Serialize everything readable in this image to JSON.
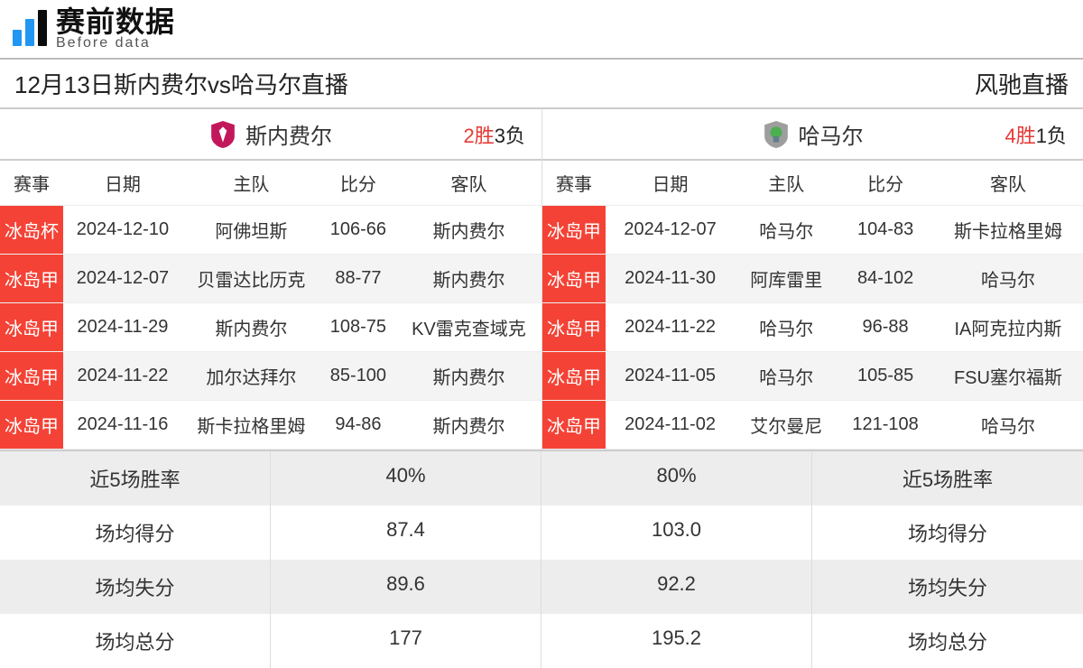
{
  "logo": {
    "cn": "赛前数据",
    "en": "Before data"
  },
  "page_title": "12月13日斯内费尔vs哈马尔直播",
  "site_name": "风驰直播",
  "columns": {
    "league": "赛事",
    "date": "日期",
    "home": "主队",
    "score": "比分",
    "away": "客队"
  },
  "left": {
    "team": "斯内费尔",
    "badge_color": "#c2185b",
    "record_win": "2胜",
    "record_loss": "3负",
    "rows": [
      {
        "league": "冰岛杯",
        "date": "2024-12-10",
        "home": "阿佛坦斯",
        "score": "106-66",
        "away": "斯内费尔"
      },
      {
        "league": "冰岛甲",
        "date": "2024-12-07",
        "home": "贝雷达比历克",
        "score": "88-77",
        "away": "斯内费尔"
      },
      {
        "league": "冰岛甲",
        "date": "2024-11-29",
        "home": "斯内费尔",
        "score": "108-75",
        "away": "KV雷克查域克"
      },
      {
        "league": "冰岛甲",
        "date": "2024-11-22",
        "home": "加尔达拜尔",
        "score": "85-100",
        "away": "斯内费尔"
      },
      {
        "league": "冰岛甲",
        "date": "2024-11-16",
        "home": "斯卡拉格里姆",
        "score": "94-86",
        "away": "斯内费尔"
      }
    ]
  },
  "right": {
    "team": "哈马尔",
    "badge_color": "#4caf50",
    "record_win": "4胜",
    "record_loss": "1负",
    "rows": [
      {
        "league": "冰岛甲",
        "date": "2024-12-07",
        "home": "哈马尔",
        "score": "104-83",
        "away": "斯卡拉格里姆"
      },
      {
        "league": "冰岛甲",
        "date": "2024-11-30",
        "home": "阿库雷里",
        "score": "84-102",
        "away": "哈马尔"
      },
      {
        "league": "冰岛甲",
        "date": "2024-11-22",
        "home": "哈马尔",
        "score": "96-88",
        "away": "IA阿克拉内斯"
      },
      {
        "league": "冰岛甲",
        "date": "2024-11-05",
        "home": "哈马尔",
        "score": "105-85",
        "away": "FSU塞尔福斯"
      },
      {
        "league": "冰岛甲",
        "date": "2024-11-02",
        "home": "艾尔曼尼",
        "score": "121-108",
        "away": "哈马尔"
      }
    ]
  },
  "stat_labels": {
    "winrate": "近5场胜率",
    "ppg": "场均得分",
    "papg": "场均失分",
    "total": "场均总分"
  },
  "stats": {
    "left": {
      "winrate": "40%",
      "ppg": "87.4",
      "papg": "89.6",
      "total": "177"
    },
    "right": {
      "winrate": "80%",
      "ppg": "103.0",
      "papg": "92.2",
      "total": "195.2"
    }
  },
  "styling": {
    "league_cell_bg": "#f44336",
    "league_cell_fg": "#ffffff",
    "row_alt_bg": "#f4f4f4",
    "stats_alt_bg": "#ededed",
    "border_color": "#cccccc",
    "win_color": "#e53935",
    "font_sizes": {
      "title": 26,
      "team_header": 24,
      "table": 20,
      "stats": 22,
      "logo_cn": 32,
      "logo_en": 16
    }
  }
}
